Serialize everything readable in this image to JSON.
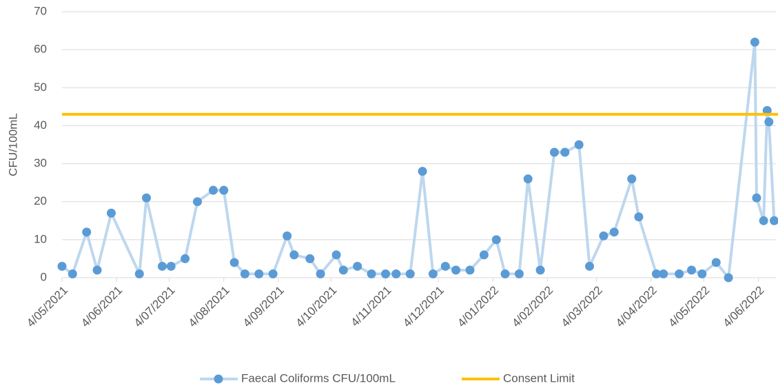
{
  "chart_data": {
    "type": "line",
    "y_label": "CFU/100mL",
    "series": [
      {
        "name": "Faecal Coliforms CFU/100mL",
        "color": "#5b9bd5",
        "line_color": "#bdd7ee",
        "x": [
          "2021-05-04",
          "2021-05-10",
          "2021-05-18",
          "2021-05-24",
          "2021-06-01",
          "2021-06-17",
          "2021-06-21",
          "2021-06-30",
          "2021-07-05",
          "2021-07-13",
          "2021-07-20",
          "2021-07-29",
          "2021-08-04",
          "2021-08-10",
          "2021-08-16",
          "2021-08-24",
          "2021-09-01",
          "2021-09-09",
          "2021-09-13",
          "2021-09-22",
          "2021-09-28",
          "2021-10-07",
          "2021-10-11",
          "2021-10-19",
          "2021-10-27",
          "2021-11-04",
          "2021-11-10",
          "2021-11-18",
          "2021-11-25",
          "2021-12-01",
          "2021-12-08",
          "2021-12-14",
          "2021-12-22",
          "2021-12-30",
          "2022-01-06",
          "2022-01-11",
          "2022-01-19",
          "2022-01-24",
          "2022-01-31",
          "2022-02-08",
          "2022-02-14",
          "2022-02-22",
          "2022-02-28",
          "2022-03-08",
          "2022-03-14",
          "2022-03-24",
          "2022-03-28",
          "2022-04-07",
          "2022-04-11",
          "2022-04-20",
          "2022-04-27",
          "2022-05-03",
          "2022-05-11",
          "2022-05-18",
          "2022-06-02",
          "2022-06-03",
          "2022-06-07",
          "2022-06-09",
          "2022-06-10",
          "2022-06-13"
        ],
        "values": [
          3,
          1,
          12,
          2,
          17,
          1,
          21,
          3,
          3,
          5,
          20,
          23,
          23,
          4,
          1,
          1,
          1,
          11,
          6,
          5,
          1,
          6,
          2,
          3,
          1,
          1,
          1,
          1,
          28,
          1,
          3,
          2,
          2,
          6,
          10,
          1,
          1,
          26,
          2,
          33,
          33,
          35,
          3,
          11,
          12,
          26,
          16,
          1,
          1,
          1,
          2,
          1,
          4,
          0,
          62,
          21,
          15,
          44,
          41,
          15
        ]
      }
    ],
    "reference_line": {
      "name": "Consent Limit",
      "value": 43,
      "color": "#ffc000"
    },
    "xlim": [
      "2021-05-04",
      "2022-06-14"
    ],
    "xticks": [
      {
        "value": "2021-05-04",
        "label": "4/05/2021"
      },
      {
        "value": "2021-06-04",
        "label": "4/06/2021"
      },
      {
        "value": "2021-07-04",
        "label": "4/07/2021"
      },
      {
        "value": "2021-08-04",
        "label": "4/08/2021"
      },
      {
        "value": "2021-09-04",
        "label": "4/09/2021"
      },
      {
        "value": "2021-10-04",
        "label": "4/10/2021"
      },
      {
        "value": "2021-11-04",
        "label": "4/11/2021"
      },
      {
        "value": "2021-12-04",
        "label": "4/12/2021"
      },
      {
        "value": "2022-01-04",
        "label": "4/01/2022"
      },
      {
        "value": "2022-02-04",
        "label": "4/02/2022"
      },
      {
        "value": "2022-03-04",
        "label": "4/03/2022"
      },
      {
        "value": "2022-04-04",
        "label": "4/04/2022"
      },
      {
        "value": "2022-05-04",
        "label": "4/05/2022"
      },
      {
        "value": "2022-06-04",
        "label": "4/06/2022"
      }
    ],
    "ylim": [
      0,
      70
    ],
    "yticks": [
      0,
      10,
      20,
      30,
      40,
      50,
      60,
      70
    ],
    "grid": true,
    "legend": "bottom"
  }
}
